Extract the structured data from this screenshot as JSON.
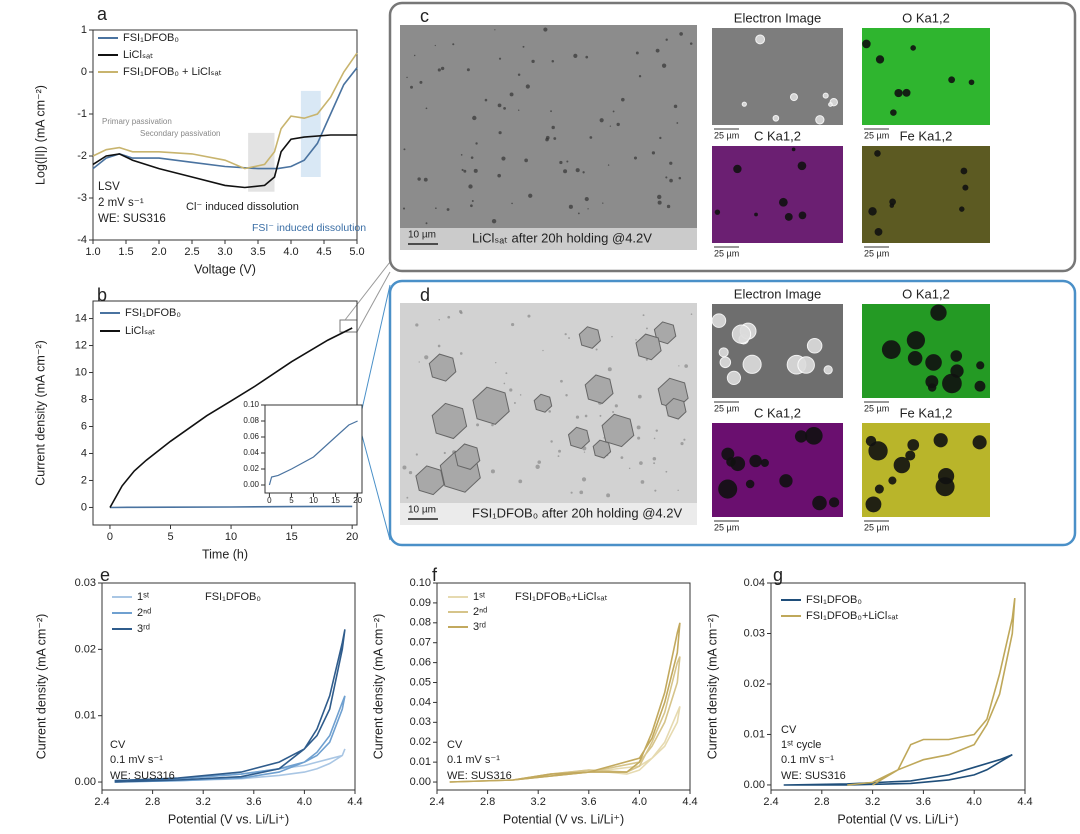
{
  "chart_data": [
    {
      "type": "line",
      "panel_label": "a",
      "xlabel": "Voltage (V)",
      "ylabel": "Log(|I|) (mA cm⁻²)",
      "xlim": [
        1,
        5
      ],
      "ylim": [
        -4,
        1
      ],
      "xticks": [
        {
          "value": 1,
          "label": "1.0"
        },
        1.5,
        {
          "value": 2,
          "label": "2.0"
        },
        2.5,
        {
          "value": 3,
          "label": "3.0"
        },
        3.5,
        {
          "value": 4,
          "label": "4.0"
        },
        4.5,
        {
          "value": 5,
          "label": "5.0"
        }
      ],
      "yticks": [
        -4,
        -3,
        -2,
        -1,
        0,
        1
      ],
      "legend": "upper left",
      "shaded_regions": [
        {
          "x": [
            3.35,
            3.75
          ],
          "y": [
            -2.85,
            -1.45
          ],
          "color": "#dcdcdc"
        },
        {
          "x": [
            4.15,
            4.45
          ],
          "y": [
            -2.5,
            -0.45
          ],
          "color": "#cfe2f3"
        }
      ],
      "annotations": [
        "Primary passivation",
        "Secondary passivation",
        "Cl⁻ induced dissolution",
        "FSI⁻ induced dissolution",
        "LSV",
        "2 mV s⁻¹",
        "WE: SUS316"
      ],
      "series": [
        {
          "name": "FSI₁DFOB₀",
          "color": "#4a73a0",
          "x": [
            1.0,
            1.2,
            1.4,
            1.6,
            2.0,
            2.5,
            3.0,
            3.5,
            3.8,
            4.0,
            4.2,
            4.4,
            4.6,
            4.8,
            5.0
          ],
          "values": [
            -2.3,
            -2.05,
            -1.95,
            -2.05,
            -2.05,
            -2.15,
            -2.25,
            -2.3,
            -2.3,
            -2.25,
            -2.1,
            -1.7,
            -1.0,
            -0.3,
            0.1
          ]
        },
        {
          "name": "LiClₛₐₜ",
          "color": "#111111",
          "x": [
            1.0,
            1.2,
            1.4,
            1.6,
            2.0,
            2.5,
            3.0,
            3.3,
            3.6,
            3.75,
            3.85,
            4.0,
            4.2,
            4.6,
            5.0
          ],
          "values": [
            -2.2,
            -2.0,
            -1.95,
            -2.1,
            -2.3,
            -2.5,
            -2.7,
            -2.75,
            -2.7,
            -2.5,
            -1.9,
            -1.6,
            -1.55,
            -1.5,
            -1.5
          ]
        },
        {
          "name": "FSI₁DFOB₀ + LiClₛₐₜ",
          "color": "#c8b46e",
          "x": [
            1.0,
            1.2,
            1.4,
            1.6,
            2.0,
            2.5,
            3.0,
            3.3,
            3.6,
            3.75,
            3.85,
            4.0,
            4.2,
            4.4,
            4.6,
            4.8,
            5.0
          ],
          "values": [
            -2.0,
            -1.85,
            -1.8,
            -1.9,
            -1.9,
            -1.95,
            -2.1,
            -2.3,
            -2.2,
            -1.9,
            -1.35,
            -1.05,
            -1.1,
            -1.0,
            -0.6,
            0.0,
            0.45
          ]
        }
      ]
    },
    {
      "type": "line",
      "panel_label": "b",
      "xlabel": "Time (h)",
      "ylabel": "Current density (mA cm⁻²)",
      "xlim": [
        -1.4,
        20.4
      ],
      "ylim": [
        -1.3,
        15.3
      ],
      "xticks": [
        0,
        5,
        10,
        15,
        20
      ],
      "yticks": [
        0,
        2,
        4,
        6,
        8,
        10,
        12,
        14
      ],
      "legend": "upper left",
      "series": [
        {
          "name": "FSI₁DFOB₀",
          "color": "#4a73a0",
          "x": [
            0,
            2,
            5,
            10,
            15,
            18,
            20
          ],
          "values": [
            0,
            0.01,
            0.02,
            0.035,
            0.06,
            0.075,
            0.08
          ]
        },
        {
          "name": "LiClₛₐₜ",
          "color": "#111111",
          "x": [
            0,
            1,
            2,
            3,
            5,
            8,
            10,
            12,
            15,
            18,
            20
          ],
          "values": [
            0,
            1.6,
            2.7,
            3.5,
            4.9,
            6.8,
            7.9,
            9.0,
            10.8,
            12.4,
            13.3
          ]
        }
      ]
    },
    {
      "type": "line",
      "xlim": [
        -1,
        21
      ],
      "ylim": [
        -0.01,
        0.1
      ],
      "xticks": [
        0,
        5,
        10,
        15,
        20
      ],
      "yticks": [
        {
          "value": 0,
          "label": "0.00"
        },
        0.02,
        0.04,
        0.06,
        0.08,
        {
          "value": 0.1,
          "label": "0.10"
        }
      ],
      "series": [
        {
          "color": "#4a73a0",
          "x": [
            0,
            0.5,
            2,
            5,
            10,
            15,
            18,
            20
          ],
          "values": [
            0,
            0.01,
            0.012,
            0.02,
            0.035,
            0.06,
            0.075,
            0.08
          ]
        }
      ]
    },
    {
      "type": "line",
      "panel_label": "e",
      "title": "FSI₁DFOB₀",
      "xlabel": "Potential (V vs. Li/Li⁺)",
      "ylabel": "Current density (mA cm⁻²)",
      "xlim": [
        2.4,
        4.4
      ],
      "ylim": [
        -0.0012,
        0.03
      ],
      "xticks": [
        2.4,
        2.8,
        3.2,
        3.6,
        {
          "value": 4,
          "label": "4.0"
        },
        4.4
      ],
      "yticks": [
        {
          "value": 0,
          "label": "0.00"
        },
        0.01,
        0.02,
        0.03
      ],
      "legend": "upper left",
      "annotations": [
        "CV",
        "0.1 mV s⁻¹",
        "WE: SUS316"
      ],
      "series": [
        {
          "name": "1ˢᵗ",
          "color": "#a9c6e4",
          "x": [
            2.5,
            3.0,
            3.5,
            3.8,
            4.0,
            4.1,
            4.2,
            4.3,
            4.32,
            4.3,
            4.2,
            4.1,
            4.0,
            3.8,
            3.5,
            3.0,
            2.5
          ],
          "values": [
            0,
            0.0002,
            0.0005,
            0.001,
            0.0015,
            0.002,
            0.0028,
            0.004,
            0.005,
            0.004,
            0.0035,
            0.003,
            0.0025,
            0.002,
            0.0012,
            0.0005,
            0.0002
          ]
        },
        {
          "name": "2ⁿᵈ",
          "color": "#6fa0d0",
          "x": [
            2.5,
            3.0,
            3.5,
            3.8,
            4.0,
            4.1,
            4.2,
            4.3,
            4.32,
            4.3,
            4.2,
            4.1,
            4.0,
            3.8,
            3.5,
            3.0,
            2.5
          ],
          "values": [
            0,
            0.0002,
            0.0006,
            0.0015,
            0.003,
            0.0045,
            0.007,
            0.012,
            0.013,
            0.011,
            0.006,
            0.004,
            0.003,
            0.002,
            0.0012,
            0.0005,
            0.0002
          ]
        },
        {
          "name": "3ʳᵈ",
          "color": "#2f5c8c",
          "x": [
            2.5,
            3.0,
            3.5,
            3.8,
            4.0,
            4.1,
            4.2,
            4.3,
            4.32,
            4.3,
            4.2,
            4.1,
            4.0,
            3.8,
            3.5,
            3.0,
            2.5
          ],
          "values": [
            0,
            0.0003,
            0.0008,
            0.002,
            0.005,
            0.008,
            0.013,
            0.021,
            0.023,
            0.02,
            0.011,
            0.007,
            0.005,
            0.003,
            0.0015,
            0.0006,
            0.0002
          ]
        }
      ]
    },
    {
      "type": "line",
      "panel_label": "f",
      "title": "FSI₁DFOB₀+LiClₛₐₜ",
      "xlabel": "Potential (V vs. Li/Li⁺)",
      "ylabel": "Current density (mA cm⁻²)",
      "xlim": [
        2.4,
        4.4
      ],
      "ylim": [
        -0.004,
        0.1
      ],
      "xticks": [
        2.4,
        2.8,
        3.2,
        3.6,
        {
          "value": 4,
          "label": "4.0"
        },
        4.4
      ],
      "yticks": [
        {
          "value": 0,
          "label": "0.00"
        },
        0.01,
        0.02,
        0.03,
        0.04,
        0.05,
        0.06,
        0.07,
        0.08,
        0.09,
        {
          "value": 0.1,
          "label": "0.10"
        }
      ],
      "legend": "upper left",
      "annotations": [
        "CV",
        "0.1 mV s⁻¹",
        "WE: SUS316"
      ],
      "series": [
        {
          "name": "1ˢᵗ",
          "color": "#e6dab0",
          "x": [
            2.5,
            3.0,
            3.3,
            3.6,
            3.9,
            4.0,
            4.1,
            4.2,
            4.3,
            4.32,
            4.3,
            4.2,
            4.1,
            4.0,
            3.6,
            3.0,
            2.5
          ],
          "values": [
            0,
            0.001,
            0.004,
            0.006,
            0.004,
            0.006,
            0.012,
            0.02,
            0.035,
            0.038,
            0.03,
            0.018,
            0.012,
            0.008,
            0.005,
            0.001,
            0
          ]
        },
        {
          "name": "2ⁿᵈ",
          "color": "#d6c48a",
          "x": [
            2.5,
            3.0,
            3.3,
            3.6,
            3.9,
            4.0,
            4.1,
            4.2,
            4.3,
            4.32,
            4.3,
            4.2,
            4.1,
            4.0,
            3.6,
            3.0,
            2.5
          ],
          "values": [
            0,
            0.001,
            0.004,
            0.006,
            0.005,
            0.008,
            0.02,
            0.035,
            0.06,
            0.063,
            0.05,
            0.03,
            0.018,
            0.01,
            0.005,
            0.001,
            0
          ]
        },
        {
          "name": "3ʳᵈ",
          "color": "#c2a95e",
          "x": [
            2.5,
            3.0,
            3.3,
            3.6,
            3.9,
            4.0,
            4.1,
            4.2,
            4.3,
            4.32,
            4.3,
            4.2,
            4.1,
            4.0,
            3.6,
            3.0,
            2.5
          ],
          "values": [
            0,
            0.001,
            0.004,
            0.005,
            0.005,
            0.01,
            0.025,
            0.045,
            0.075,
            0.08,
            0.065,
            0.04,
            0.022,
            0.012,
            0.005,
            0.001,
            0
          ]
        }
      ]
    },
    {
      "type": "line",
      "panel_label": "g",
      "xlabel": "Potential (V vs. Li/Li⁺)",
      "ylabel": "Current density (mA cm⁻²)",
      "xlim": [
        2.4,
        4.4
      ],
      "ylim": [
        -0.001,
        0.04
      ],
      "xticks": [
        2.4,
        2.8,
        3.2,
        3.6,
        {
          "value": 4,
          "label": "4.0"
        },
        4.4
      ],
      "yticks": [
        {
          "value": 0,
          "label": "0.00"
        },
        0.01,
        0.02,
        0.03,
        0.04
      ],
      "legend": "upper left",
      "annotations": [
        "CV",
        "1ˢᵗ cycle",
        "0.1 mV s⁻¹",
        "WE: SUS316"
      ],
      "series": [
        {
          "name": "FSI₁DFOB₀",
          "color": "#1f4e7a",
          "x": [
            2.5,
            3.0,
            3.5,
            3.8,
            4.0,
            4.1,
            4.2,
            4.3,
            4.2,
            4.0,
            3.8,
            3.5,
            3.0,
            2.5
          ],
          "values": [
            0,
            0,
            0.0003,
            0.001,
            0.002,
            0.003,
            0.0045,
            0.006,
            0.005,
            0.0035,
            0.002,
            0.0008,
            0.0002,
            0
          ]
        },
        {
          "name": "FSI₁DFOB₀+LiClₛₐₜ",
          "color": "#bfa85a",
          "x": [
            3.2,
            3.4,
            3.5,
            3.6,
            3.8,
            3.9,
            4.0,
            4.1,
            4.2,
            4.3,
            4.32,
            4.3,
            4.2,
            4.1,
            4.0,
            3.8,
            3.6,
            3.4,
            3.2,
            3.0
          ],
          "values": [
            0,
            0.003,
            0.008,
            0.009,
            0.009,
            0.0095,
            0.01,
            0.013,
            0.022,
            0.033,
            0.037,
            0.03,
            0.018,
            0.012,
            0.008,
            0.006,
            0.005,
            0.003,
            0.0005,
            0
          ]
        }
      ]
    }
  ],
  "image_panels": [
    {
      "label": "c",
      "caption": "LiClₛₐₜ after 20h holding @4.2V",
      "scale_bar": "10 µm",
      "maps": [
        {
          "title": "Electron Image",
          "scale_bar": "25 µm",
          "color": "#7d7d7d"
        },
        {
          "title": "O Ka1,2",
          "scale_bar": "25 µm",
          "color": "#2fb52f"
        },
        {
          "title": "C Ka1,2",
          "scale_bar": "25 µm",
          "color": "#6b1f72"
        },
        {
          "title": "Fe Ka1,2",
          "scale_bar": "25 µm",
          "color": "#5c5a22"
        }
      ]
    },
    {
      "label": "d",
      "caption": "FSI₁DFOB₀ after 20h holding @4.2V",
      "scale_bar": "10 µm",
      "maps": [
        {
          "title": "Electron Image",
          "scale_bar": "25 µm",
          "color": "#6e6e6e"
        },
        {
          "title": "O Ka1,2",
          "scale_bar": "25 µm",
          "color": "#249a24"
        },
        {
          "title": "C Ka1,2",
          "scale_bar": "25 µm",
          "color": "#6a0f6f"
        },
        {
          "title": "Fe Ka1,2",
          "scale_bar": "25 µm",
          "color": "#b9b52a"
        }
      ]
    }
  ]
}
